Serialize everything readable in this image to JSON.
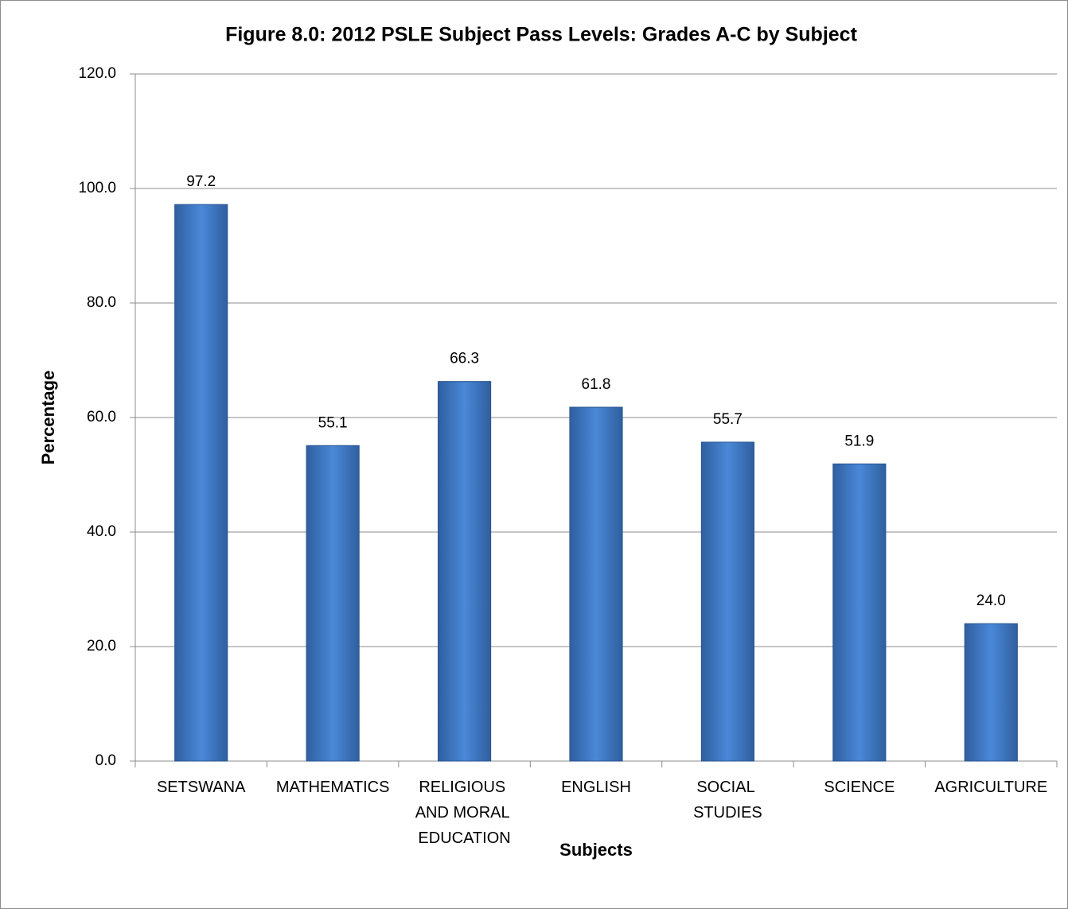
{
  "chart_data": {
    "type": "bar",
    "title": "Figure 8.0: 2012 PSLE Subject Pass Levels: Grades A-C by Subject",
    "x_label": "Subjects",
    "y_label": "Percentage",
    "categories": [
      "SETSWANA",
      "MATHEMATICS",
      "RELIGIOUS AND MORAL EDUCATION",
      "ENGLISH",
      "SOCIAL STUDIES",
      "SCIENCE",
      "AGRICULTURE"
    ],
    "values": [
      97.2,
      55.1,
      66.3,
      61.8,
      55.7,
      51.9,
      24.0
    ],
    "value_labels": [
      "97.2",
      "55.1",
      "66.3",
      "61.8",
      "55.7",
      "51.9",
      "24.0"
    ],
    "color": "#3f7ccb",
    "ylim": [
      0,
      120
    ],
    "yticks": [
      {
        "value": 0,
        "label": "0.0"
      },
      {
        "value": 20,
        "label": "20.0"
      },
      {
        "value": 40,
        "label": "40.0"
      },
      {
        "value": 60,
        "label": "60.0"
      },
      {
        "value": 80,
        "label": "80.0"
      },
      {
        "value": 100,
        "label": "100.0"
      },
      {
        "value": 120,
        "label": "120.0"
      }
    ],
    "grid": true
  }
}
